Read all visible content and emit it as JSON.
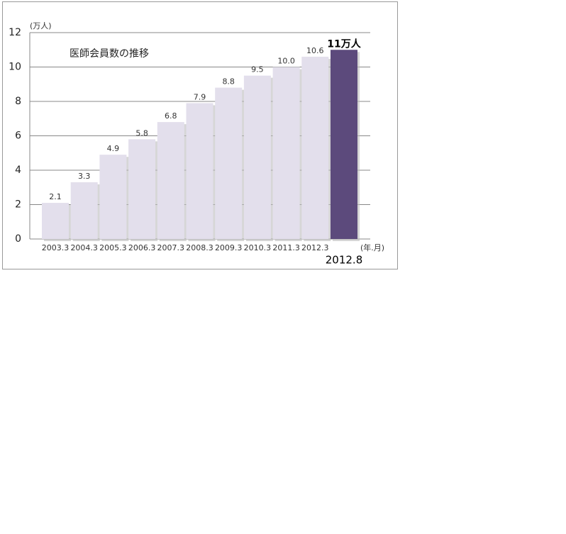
{
  "chart_data": {
    "type": "bar",
    "title": "医師会員数の推移",
    "y_axis_label": "(万人)",
    "x_axis_label": "(年.月)",
    "categories": [
      "2003.3",
      "2004.3",
      "2005.3",
      "2006.3",
      "2007.3",
      "2008.3",
      "2009.3",
      "2010.3",
      "2011.3",
      "2012.3",
      "2012.8"
    ],
    "values": [
      2.1,
      3.3,
      4.9,
      5.8,
      6.8,
      7.9,
      8.8,
      9.5,
      10.0,
      10.6,
      11
    ],
    "value_labels": [
      "2.1",
      "3.3",
      "4.9",
      "5.8",
      "6.8",
      "7.9",
      "8.8",
      "9.5",
      "10.0",
      "10.6",
      "11万人"
    ],
    "colors": [
      "#e3dfec",
      "#e3dfec",
      "#e3dfec",
      "#e3dfec",
      "#e3dfec",
      "#e3dfec",
      "#e3dfec",
      "#e3dfec",
      "#e3dfec",
      "#e3dfec",
      "#5c4a7c"
    ],
    "ylim": [
      0,
      12
    ],
    "yticks": [
      0,
      2,
      4,
      6,
      8,
      10,
      12
    ],
    "grid": true
  }
}
